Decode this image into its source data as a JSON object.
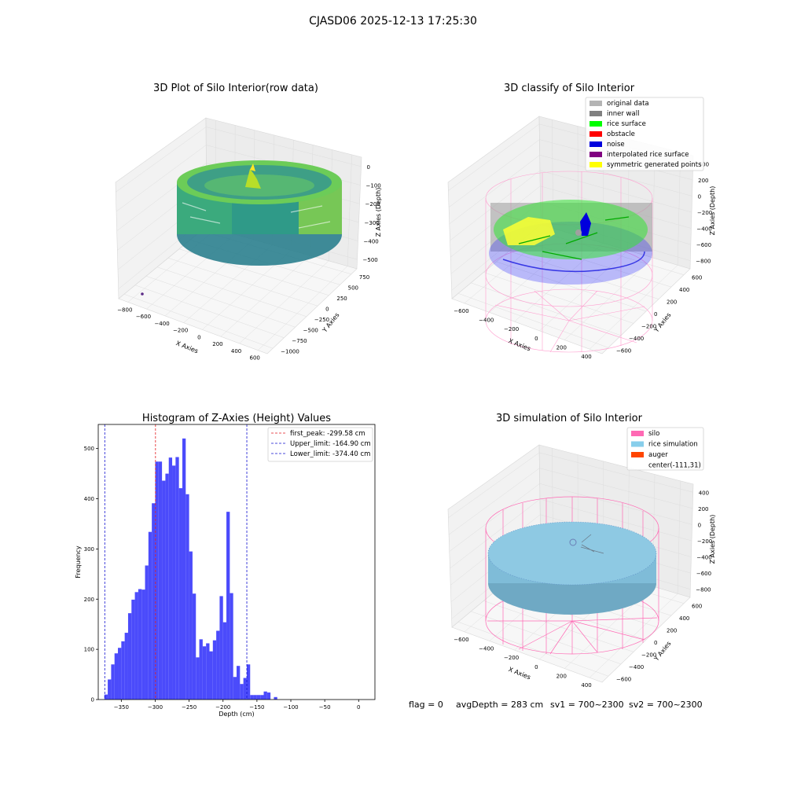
{
  "suptitle": "CJASD06 2025-12-13 17:25:30",
  "colors": {
    "hist_bar": "#4b4bfb",
    "peak_line": "#e41a1c",
    "limit_line": "#1010d0",
    "original": "#b4b4b4",
    "inner_wall": "#808080",
    "rice": "#00ff00",
    "obstacle": "#ff0000",
    "noise": "#0000dd",
    "interp": "#800080",
    "symmetric": "#ffff00",
    "silo": "#ff69b4",
    "rice_sim": "#87ceeb",
    "auger": "#ff4500"
  },
  "panel_tl": {
    "title": "3D Plot of Silo Interior(row data)",
    "x_label": "X Axies",
    "y_label": "Y Axies",
    "z_label": "Z Axies (Depth)",
    "x_ticks": [
      "−800",
      "−600",
      "−400",
      "−200",
      "0",
      "200",
      "400",
      "600"
    ],
    "y_ticks": [
      "750",
      "500",
      "250",
      "0",
      "−250",
      "−500",
      "−750",
      "−1000"
    ],
    "z_ticks": [
      "0",
      "−100",
      "−200",
      "−300",
      "−400",
      "−500"
    ]
  },
  "panel_tr": {
    "title": "3D classify of Silo Interior",
    "x_label": "X Axies",
    "y_label": "Y Axies",
    "z_label": "Z Axies (Depth)",
    "x_ticks": [
      "−600",
      "−400",
      "−200",
      "0",
      "200",
      "400"
    ],
    "y_ticks": [
      "600",
      "400",
      "200",
      "0",
      "−200",
      "−400",
      "−600"
    ],
    "z_ticks": [
      "400",
      "200",
      "0",
      "−200",
      "−400",
      "−600",
      "−800"
    ],
    "legend": [
      {
        "label": "original data",
        "color_key": "original"
      },
      {
        "label": "inner wall",
        "color_key": "inner_wall"
      },
      {
        "label": "rice surface",
        "color_key": "rice"
      },
      {
        "label": "obstacle",
        "color_key": "obstacle"
      },
      {
        "label": "noise",
        "color_key": "noise"
      },
      {
        "label": "interpolated rice surface",
        "color_key": "interp"
      },
      {
        "label": "symmetric generated points",
        "color_key": "symmetric"
      }
    ]
  },
  "panel_br": {
    "title": "3D simulation of Silo Interior",
    "x_label": "X Axies",
    "y_label": "Y Axies",
    "z_label": "Z Axies (Depth)",
    "x_ticks": [
      "−600",
      "−400",
      "−200",
      "0",
      "200",
      "400"
    ],
    "y_ticks": [
      "600",
      "400",
      "200",
      "0",
      "−200",
      "−400",
      "−600"
    ],
    "z_ticks": [
      "400",
      "200",
      "0",
      "−200",
      "−400",
      "−600",
      "−800"
    ],
    "legend": [
      {
        "label": "silo",
        "color_key": "silo"
      },
      {
        "label": "rice simulation",
        "color_key": "rice_sim"
      },
      {
        "label": "auger",
        "color_key": "auger"
      },
      {
        "label": "center(-111,31)",
        "color_key": ""
      }
    ]
  },
  "footer": {
    "flag": "flag = 0",
    "avg": "avgDepth = 283 cm",
    "sv1": "sv1 = 700~2300",
    "sv2": "sv2 = 700~2300"
  },
  "chart_data": {
    "type": "bar",
    "title": "Histogram of Z-Axies (Height) Values",
    "xlabel": "Depth (cm)",
    "ylabel": "Frequency",
    "xlim": [
      -384,
      24
    ],
    "ylim": [
      0,
      548
    ],
    "x_ticks": [
      -350,
      -300,
      -250,
      -200,
      -150,
      -100,
      -50,
      0
    ],
    "y_ticks": [
      0,
      100,
      200,
      300,
      400,
      500
    ],
    "bin_width": 5,
    "bin_starts": [
      -375,
      -370,
      -365,
      -360,
      -355,
      -350,
      -345,
      -340,
      -335,
      -330,
      -325,
      -320,
      -315,
      -310,
      -305,
      -300,
      -295,
      -290,
      -285,
      -280,
      -275,
      -270,
      -265,
      -260,
      -255,
      -250,
      -245,
      -240,
      -235,
      -230,
      -225,
      -220,
      -215,
      -210,
      -205,
      -200,
      -195,
      -190,
      -185,
      -180,
      -175,
      -170,
      -165,
      -160,
      -155,
      -150,
      -145,
      -140,
      -135,
      -130,
      -125,
      -120,
      -115,
      -110,
      -105,
      -100,
      -95,
      -90,
      -85,
      -80,
      -75,
      -70,
      -65,
      -60,
      -55,
      -50,
      -45,
      -40,
      -35,
      -30,
      -25,
      -20,
      -15,
      -10,
      -5,
      0
    ],
    "values": [
      10,
      40,
      70,
      92,
      103,
      116,
      133,
      172,
      199,
      214,
      220,
      219,
      267,
      334,
      391,
      474,
      474,
      436,
      450,
      482,
      466,
      483,
      421,
      520,
      409,
      295,
      211,
      84,
      120,
      106,
      112,
      96,
      118,
      137,
      206,
      154,
      374,
      212,
      45,
      67,
      31,
      43,
      70,
      9,
      9,
      9,
      9,
      16,
      14,
      0,
      5,
      0,
      0,
      0,
      0,
      0,
      0,
      0,
      0,
      0,
      0,
      0,
      0,
      0,
      0,
      0,
      0,
      0,
      0,
      0,
      0,
      0,
      0,
      0,
      0,
      0
    ],
    "vlines": [
      {
        "label": "first_peak: -299.58 cm",
        "x": -299.58,
        "color_key": "peak_line"
      },
      {
        "label": "Upper_limit: -164.90 cm",
        "x": -164.9,
        "color_key": "limit_line"
      },
      {
        "label": "Lower_limit: -374.40 cm",
        "x": -374.4,
        "color_key": "limit_line"
      }
    ]
  }
}
